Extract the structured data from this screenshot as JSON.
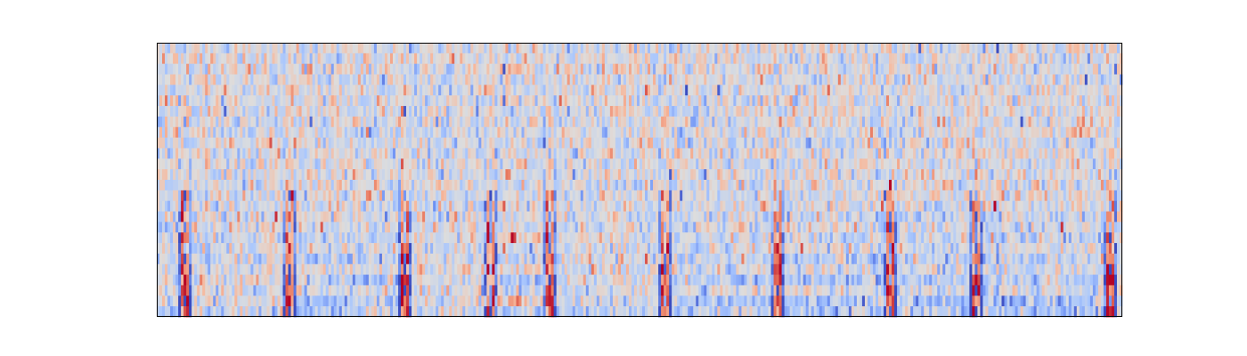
{
  "chart_data": {
    "type": "heatmap",
    "title": "",
    "xlabel": "",
    "ylabel": "",
    "axes_visible": false,
    "colormap": "coolwarm",
    "colormap_stops": [
      "#3b4cc0",
      "#6f92f3",
      "#aac7fd",
      "#dddddd",
      "#f7b89c",
      "#e7745b",
      "#b40426"
    ],
    "n_rows": 26,
    "n_cols": 360,
    "value_range": [
      -1,
      1
    ],
    "onset_columns": [
      10,
      49,
      92,
      124,
      146,
      189,
      231,
      273,
      305,
      355
    ],
    "sustained_segments": [
      {
        "start_col": 50,
        "end_col": 90,
        "tone": "blue"
      },
      {
        "start_col": 121,
        "end_col": 145,
        "tone": "mixed"
      },
      {
        "start_col": 190,
        "end_col": 228,
        "tone": "blue"
      },
      {
        "start_col": 233,
        "end_col": 270,
        "tone": "blue"
      },
      {
        "start_col": 275,
        "end_col": 303,
        "tone": "blue"
      },
      {
        "start_col": 306,
        "end_col": 350,
        "tone": "blue"
      }
    ]
  }
}
